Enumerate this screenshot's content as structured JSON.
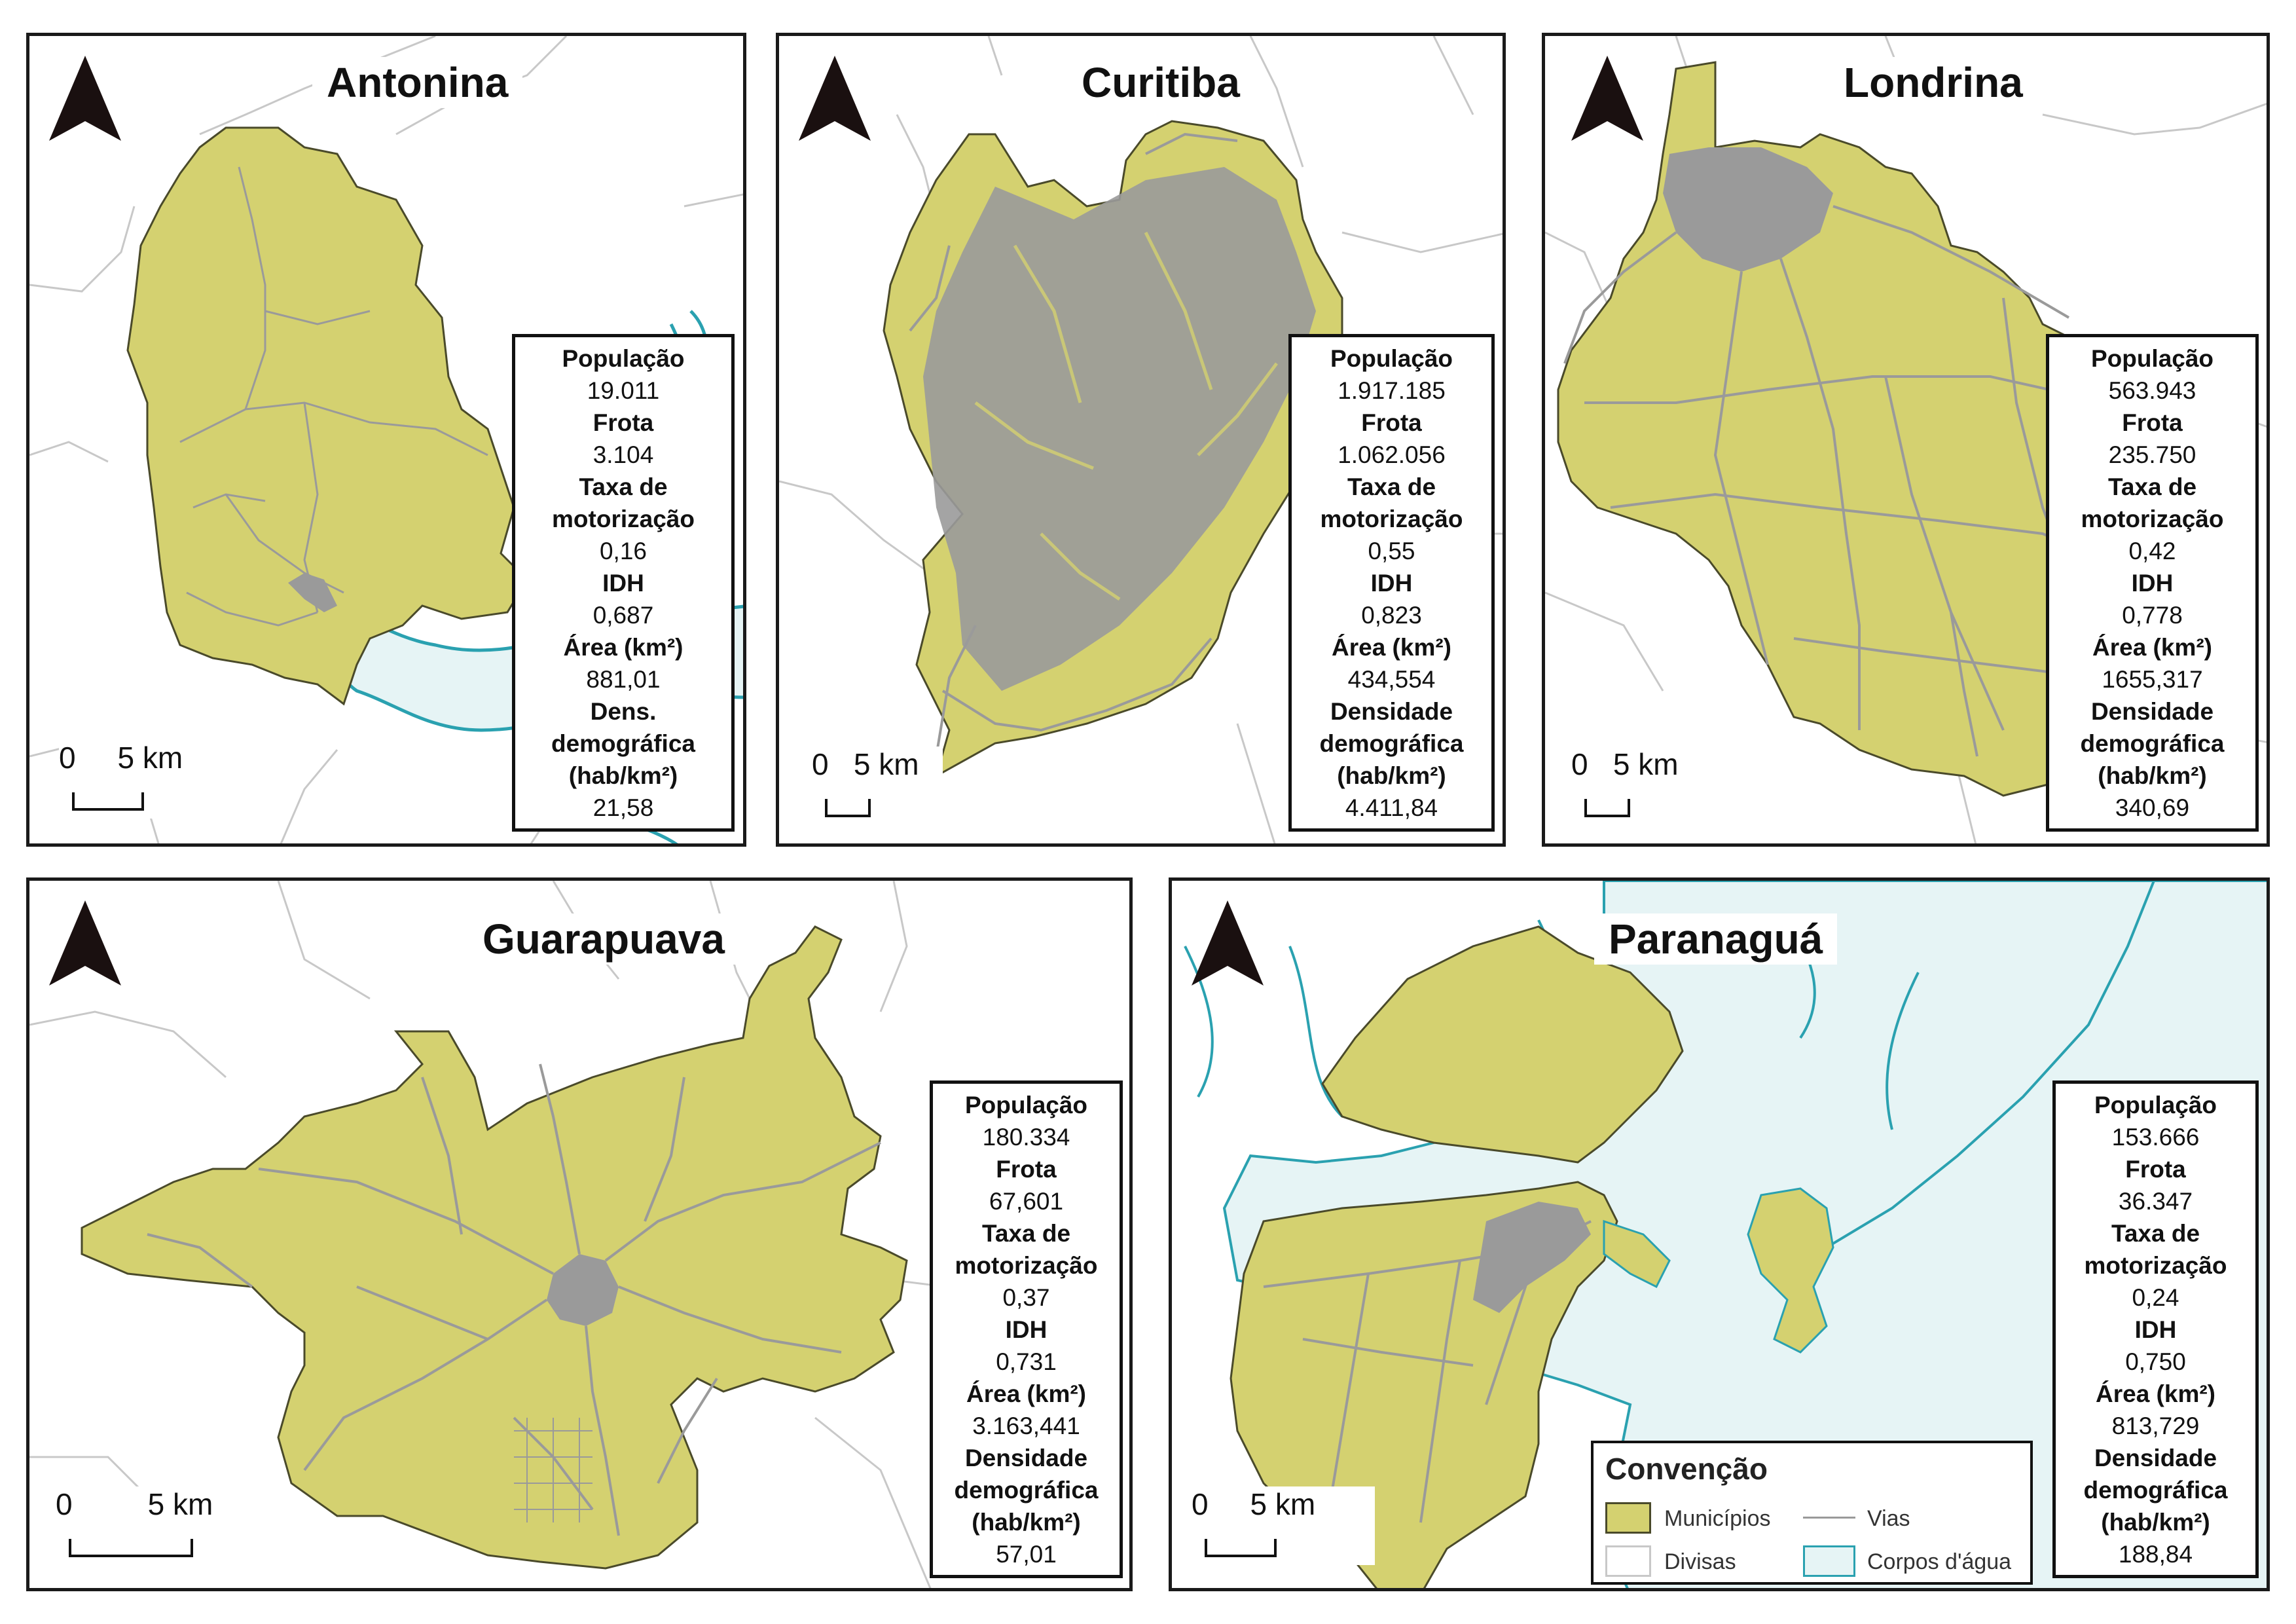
{
  "colors": {
    "municipio_fill": "#d4d170",
    "municipio_stroke": "#4a4a2a",
    "vias": "#9a9a9a",
    "divisas": "#c8c8c8",
    "agua_fill": "#e6f4f5",
    "agua_stroke": "#2aa1b0"
  },
  "icons": {
    "north_arrow": "north-arrow-icon"
  },
  "panels": [
    {
      "id": "antonina",
      "title": "Antonina",
      "scale_label": "0     5 km",
      "stats": [
        {
          "label": "População",
          "value": "19.011"
        },
        {
          "label": "Frota",
          "value": "3.104"
        },
        {
          "label": "Taxa de\nmotorização",
          "value": "0,16"
        },
        {
          "label": "IDH",
          "value": "0,687"
        },
        {
          "label": "Área (km²)",
          "value": "881,01"
        },
        {
          "label": "Dens.\ndemográfica\n(hab/km²)",
          "value": "21,58"
        }
      ]
    },
    {
      "id": "curitiba",
      "title": "Curitiba",
      "scale_label": "0   5 km",
      "stats": [
        {
          "label": "População",
          "value": "1.917.185"
        },
        {
          "label": "Frota",
          "value": "1.062.056"
        },
        {
          "label": "Taxa de\nmotorização",
          "value": "0,55"
        },
        {
          "label": "IDH",
          "value": "0,823"
        },
        {
          "label": "Área (km²)",
          "value": "434,554"
        },
        {
          "label": "Densidade\ndemográfica\n(hab/km²)",
          "value": "4.411,84"
        }
      ]
    },
    {
      "id": "londrina",
      "title": "Londrina",
      "scale_label": "0   5 km",
      "stats": [
        {
          "label": "População",
          "value": "563.943"
        },
        {
          "label": "Frota",
          "value": "235.750"
        },
        {
          "label": "Taxa de\nmotorização",
          "value": "0,42"
        },
        {
          "label": "IDH",
          "value": "0,778"
        },
        {
          "label": "Área (km²)",
          "value": "1655,317"
        },
        {
          "label": "Densidade\ndemográfica\n(hab/km²)",
          "value": "340,69"
        }
      ]
    },
    {
      "id": "guarapuava",
      "title": "Guarapuava",
      "scale_label": "0         5 km",
      "stats": [
        {
          "label": "População",
          "value": "180.334"
        },
        {
          "label": "Frota",
          "value": "67,601"
        },
        {
          "label": "Taxa de\nmotorização",
          "value": "0,37"
        },
        {
          "label": "IDH",
          "value": "0,731"
        },
        {
          "label": "Área (km²)",
          "value": "3.163,441"
        },
        {
          "label": "Densidade\ndemográfica\n(hab/km²)",
          "value": "57,01"
        }
      ]
    },
    {
      "id": "paranagua",
      "title": "Paranaguá",
      "scale_label": "0     5 km",
      "stats": [
        {
          "label": "População",
          "value": "153.666"
        },
        {
          "label": "Frota",
          "value": "36.347"
        },
        {
          "label": "Taxa de\nmotorização",
          "value": "0,24"
        },
        {
          "label": "IDH",
          "value": "0,750"
        },
        {
          "label": "Área (km²)",
          "value": "813,729"
        },
        {
          "label": "Densidade\ndemográfica\n(hab/km²)",
          "value": "188,84"
        }
      ]
    }
  ],
  "legend": {
    "title": "Convenção",
    "items": {
      "municipios": "Municípios",
      "vias": "Vias",
      "divisas": "Divisas",
      "corpos_agua": "Corpos d'água"
    }
  }
}
